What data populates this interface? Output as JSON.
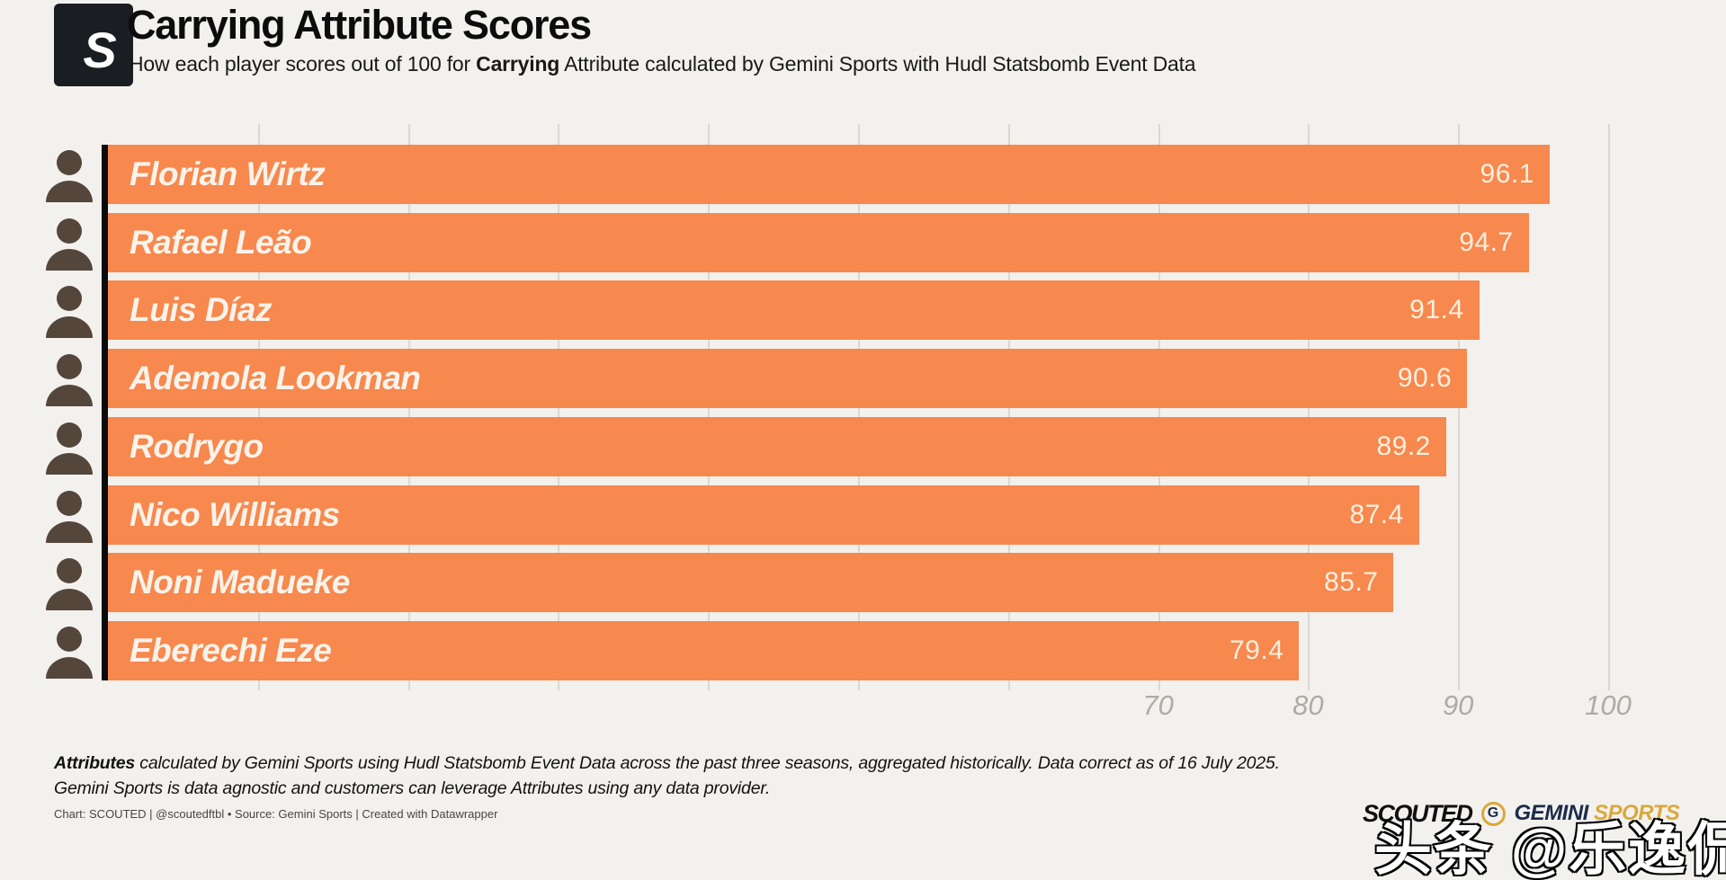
{
  "header": {
    "logo_letter": "S",
    "title": "Carrying Attribute Scores",
    "subtitle_prefix": "How each player scores out of 100 for ",
    "subtitle_bold": "Carrying",
    "subtitle_suffix": " Attribute calculated by Gemini Sports with Hudl Statsbomb Event Data"
  },
  "chart_data": {
    "type": "bar",
    "orientation": "horizontal",
    "title": "Carrying Attribute Scores",
    "categories": [
      "Florian Wirtz",
      "Rafael Leão",
      "Luis Díaz",
      "Ademola Lookman",
      "Rodrygo",
      "Nico Williams",
      "Noni Madueke",
      "Eberechi Eze"
    ],
    "values": [
      96.1,
      94.7,
      91.4,
      90.6,
      89.2,
      87.4,
      85.7,
      79.4
    ],
    "xlim": [
      0,
      107.5
    ],
    "x_ticks": [
      70,
      80,
      90,
      100
    ],
    "gridline_step": 10,
    "grid": true,
    "legend": "none",
    "bar_color": "#F7884E",
    "bar_label_color": "#FAF3EA",
    "value_label_color": "#FCF0DE",
    "axis_line_color": "#0B0B0B",
    "tick_label_color": "#AEAAA5",
    "avatar_color": "#55463c"
  },
  "footer": {
    "note1_bold": "Attributes",
    "note1_rest": " calculated by Gemini Sports using Hudl Statsbomb Event Data across the past three seasons, aggregated historically. Data correct as of 16 July 2025.",
    "note2": "Gemini Sports is data agnostic and customers can leverage Attributes using any data provider.",
    "credit": "Chart: SCOUTED | @scoutedftbl • Source: Gemini Sports | Created with Datawrapper"
  },
  "branding": {
    "scouted_wordmark": "SCOUTED",
    "gemini_letter": "G",
    "gemini_word1": "GEMINI",
    "gemini_word2": "SPORTS"
  },
  "watermark": "头条 @乐逸侃球"
}
